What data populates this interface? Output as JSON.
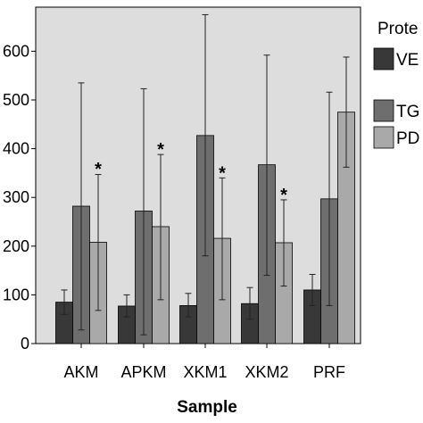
{
  "chart_data": {
    "type": "bar",
    "xlabel": "Sample",
    "ylabel": "",
    "ylim": [
      0,
      700
    ],
    "yticks": [
      0,
      100,
      200,
      300,
      400,
      500,
      600
    ],
    "ytick_labels": [
      "0",
      "100",
      "200",
      "300",
      "400",
      "500",
      "600"
    ],
    "grid": false,
    "legend": {
      "title": "Prote",
      "placement": "right"
    },
    "categories": [
      "AKM",
      "APKM",
      "XKM1",
      "XKM2",
      "PRF"
    ],
    "series": [
      {
        "name": "VE",
        "color": "#383838",
        "values": [
          85,
          77,
          78,
          82,
          110
        ],
        "err_low": [
          60,
          55,
          55,
          50,
          78
        ],
        "err_high": [
          110,
          100,
          103,
          115,
          142
        ]
      },
      {
        "name": "TG",
        "color": "#6e6e6e",
        "values": [
          282,
          272,
          427,
          367,
          297
        ],
        "err_low": [
          28,
          18,
          180,
          140,
          78
        ],
        "err_high": [
          535,
          523,
          675,
          592,
          516
        ]
      },
      {
        "name": "PD",
        "color": "#a9a9a9",
        "values": [
          208,
          240,
          216,
          207,
          475
        ],
        "err_low": [
          68,
          90,
          90,
          118,
          362
        ],
        "err_high": [
          347,
          388,
          340,
          295,
          588
        ]
      }
    ],
    "annotations": [
      {
        "text": "*",
        "category": "AKM",
        "series": "PD",
        "y": 368
      },
      {
        "text": "*",
        "category": "APKM",
        "series": "PD",
        "y": 408
      },
      {
        "text": "*",
        "category": "XKM1",
        "series": "PD",
        "y": 360
      },
      {
        "text": "*",
        "category": "XKM2",
        "series": "PD",
        "y": 315
      }
    ]
  }
}
